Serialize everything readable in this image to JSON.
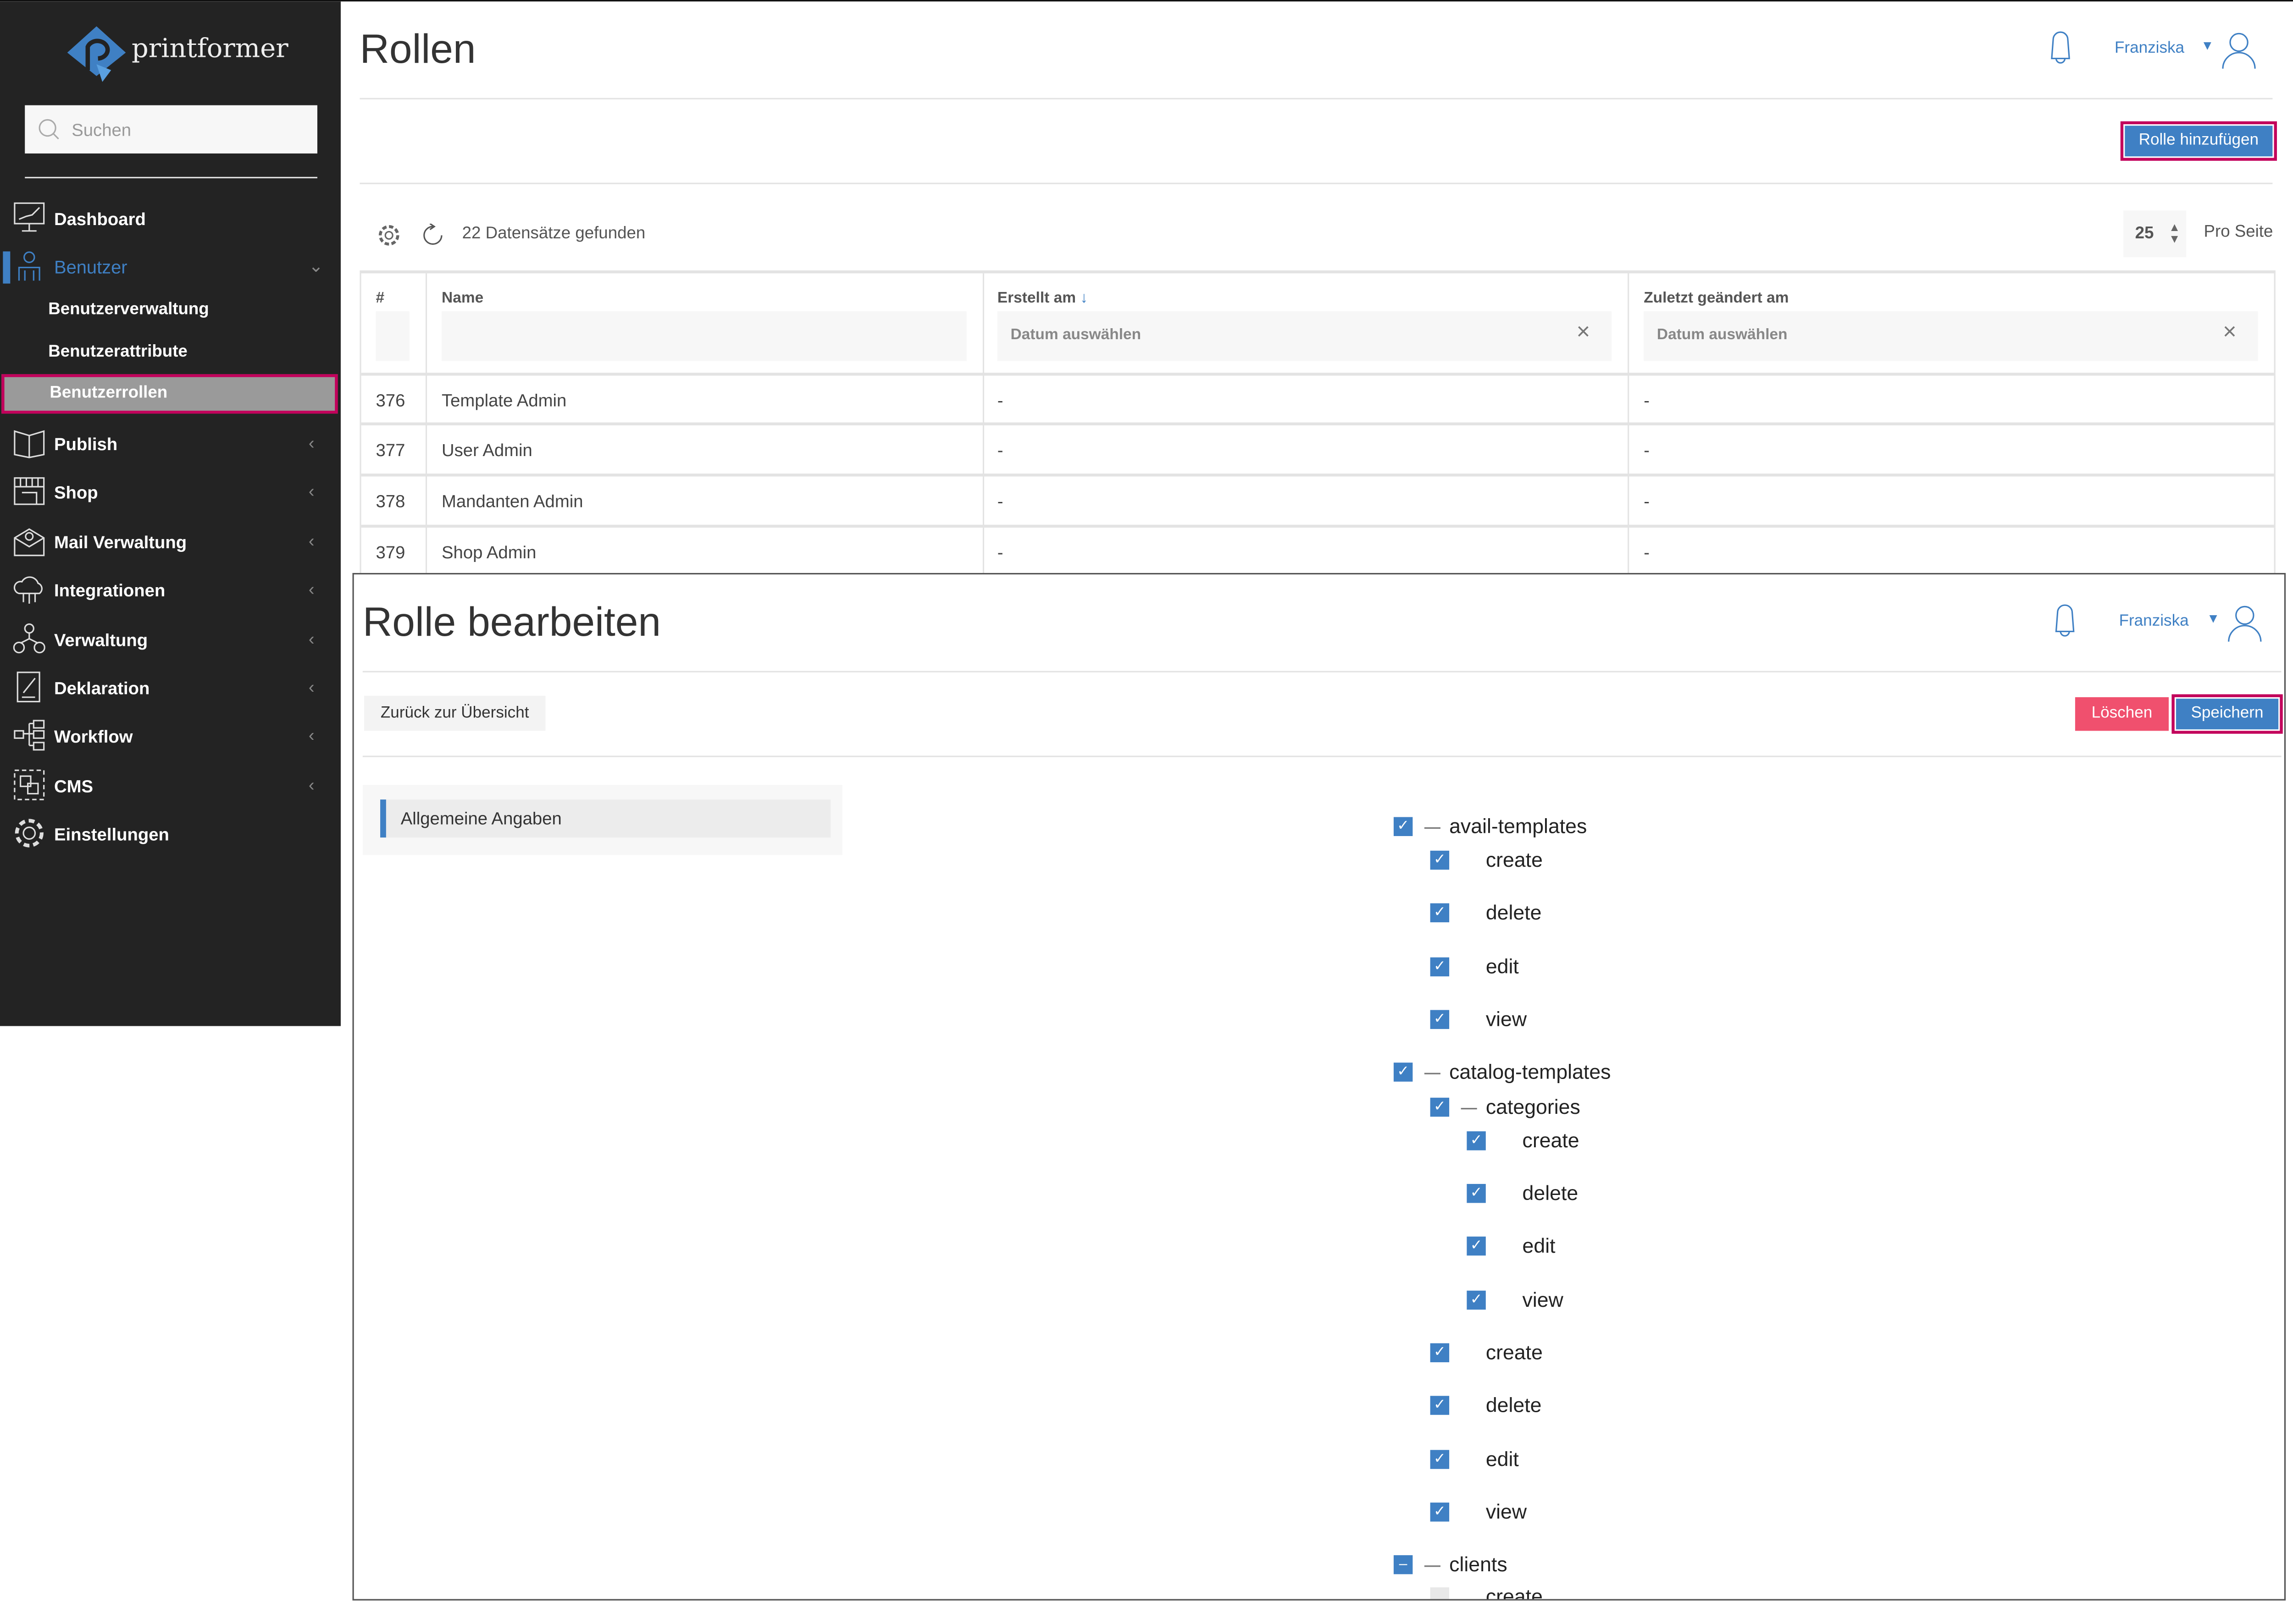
{
  "brand": {
    "name": "printformer",
    "accent": "#3f80c4",
    "highlight": "#c2005b"
  },
  "sidebar": {
    "search_placeholder": "Suchen",
    "items": [
      {
        "label": "Dashboard",
        "icon": "dashboard-monitor-icon"
      },
      {
        "label": "Benutzer",
        "icon": "user-icon",
        "active": true,
        "expanded": true,
        "children": [
          {
            "label": "Benutzerverwaltung"
          },
          {
            "label": "Benutzerattribute"
          },
          {
            "label": "Benutzerrollen",
            "selected": true
          }
        ]
      },
      {
        "label": "Publish",
        "icon": "book-icon"
      },
      {
        "label": "Shop",
        "icon": "shop-icon"
      },
      {
        "label": "Mail Verwaltung",
        "icon": "mail-icon"
      },
      {
        "label": "Integrationen",
        "icon": "cloud-icon"
      },
      {
        "label": "Verwaltung",
        "icon": "network-icon"
      },
      {
        "label": "Deklaration",
        "icon": "document-edit-icon"
      },
      {
        "label": "Workflow",
        "icon": "workflow-icon"
      },
      {
        "label": "CMS",
        "icon": "cms-icon"
      },
      {
        "label": "Einstellungen",
        "icon": "gear-icon"
      }
    ]
  },
  "roles_page": {
    "title": "Rollen",
    "user": "Franziska",
    "add_button": "Rolle hinzufügen",
    "records_found": "22 Datensätze gefunden",
    "per_page_value": "25",
    "per_page_label": "Pro Seite",
    "columns": [
      "#",
      "Name",
      "Erstellt am",
      "Zuletzt geändert am"
    ],
    "date_placeholder": "Datum auswählen",
    "rows": [
      {
        "id": "376",
        "name": "Template Admin",
        "created": "-",
        "modified": "-"
      },
      {
        "id": "377",
        "name": "User Admin",
        "created": "-",
        "modified": "-"
      },
      {
        "id": "378",
        "name": "Mandanten Admin",
        "created": "-",
        "modified": "-"
      },
      {
        "id": "379",
        "name": "Shop Admin",
        "created": "-",
        "modified": "-"
      }
    ]
  },
  "edit_page": {
    "title": "Rolle bearbeiten",
    "user": "Franziska",
    "back_button": "Zurück zur Übersicht",
    "delete_button": "Löschen",
    "save_button": "Speichern",
    "tab": "Allgemeine Angaben",
    "tree": [
      {
        "label": "avail-templates",
        "level": 0,
        "state": "checked",
        "group": true
      },
      {
        "label": "create",
        "level": 1,
        "state": "checked"
      },
      {
        "label": "delete",
        "level": 1,
        "state": "checked"
      },
      {
        "label": "edit",
        "level": 1,
        "state": "checked"
      },
      {
        "label": "view",
        "level": 1,
        "state": "checked"
      },
      {
        "label": "catalog-templates",
        "level": 0,
        "state": "checked",
        "group": true
      },
      {
        "label": "categories",
        "level": 1,
        "state": "checked",
        "group": true
      },
      {
        "label": "create",
        "level": 2,
        "state": "checked"
      },
      {
        "label": "delete",
        "level": 2,
        "state": "checked"
      },
      {
        "label": "edit",
        "level": 2,
        "state": "checked"
      },
      {
        "label": "view",
        "level": 2,
        "state": "checked"
      },
      {
        "label": "create",
        "level": 1,
        "state": "checked"
      },
      {
        "label": "delete",
        "level": 1,
        "state": "checked"
      },
      {
        "label": "edit",
        "level": 1,
        "state": "checked"
      },
      {
        "label": "view",
        "level": 1,
        "state": "checked"
      },
      {
        "label": "clients",
        "level": 0,
        "state": "indeterminate",
        "group": true
      },
      {
        "label": "create",
        "level": 1,
        "state": "unchecked"
      }
    ]
  }
}
